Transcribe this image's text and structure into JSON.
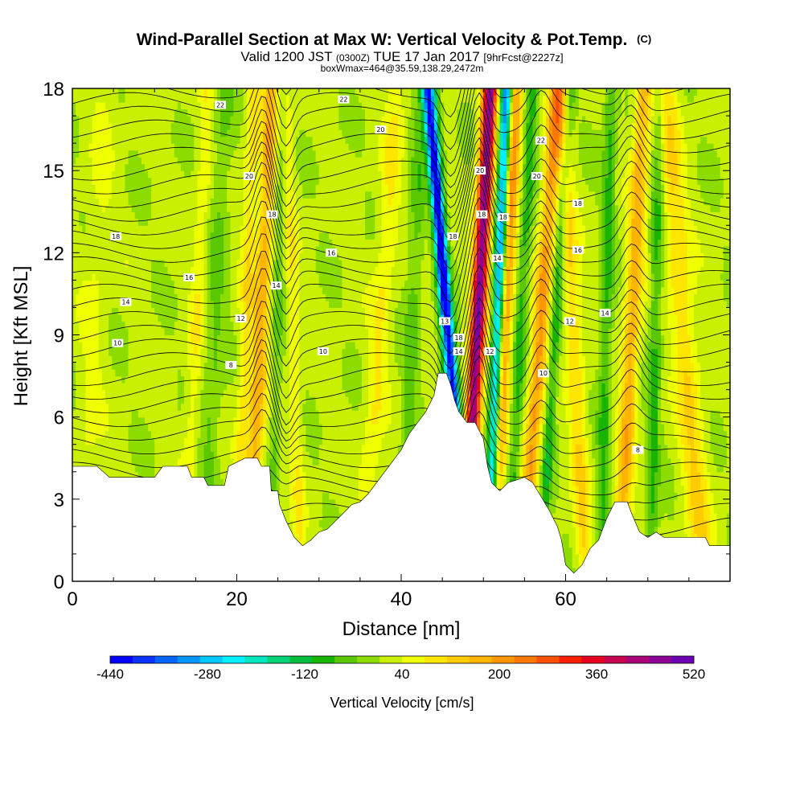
{
  "chart_data": {
    "type": "heatmap",
    "title": {
      "main": "Wind-Parallel Section at Max W: Vertical Velocity & Pot.Temp.",
      "main_tag": "(C)",
      "sub_prefix": "Valid 1200 JST",
      "sub_utc": "(0300Z)",
      "sub_date": "TUE 17 Jan 2017",
      "sub_fcst": "[9hrFcst@2227z]",
      "box": "boxWmax=464@35.59,138.29,2472m"
    },
    "xlabel": "Distance [nm]",
    "ylabel": "Height [Kft MSL]",
    "xlim": [
      0,
      80
    ],
    "ylim": [
      0,
      18
    ],
    "x_ticks": [
      0,
      20,
      40,
      60
    ],
    "y_ticks": [
      0,
      3,
      6,
      9,
      12,
      15,
      18
    ],
    "colorbar": {
      "title": "Vertical Velocity [cm/s]",
      "labels": [
        -440,
        -280,
        -120,
        40,
        200,
        360,
        520
      ],
      "levels": [
        -440,
        -400,
        -360,
        -320,
        -280,
        -240,
        -200,
        -160,
        -120,
        -80,
        -40,
        0,
        40,
        80,
        120,
        160,
        200,
        240,
        280,
        320,
        360,
        400,
        440,
        480,
        520
      ],
      "colors": [
        "#0000ff",
        "#0a32ff",
        "#0064ff",
        "#0096ff",
        "#00c8ff",
        "#00f0ff",
        "#00e6be",
        "#00d278",
        "#00be3c",
        "#19b400",
        "#5ac800",
        "#8cdc00",
        "#c8f000",
        "#f0ff00",
        "#ffe600",
        "#ffcc00",
        "#ffb400",
        "#ff9600",
        "#ff7800",
        "#ff5000",
        "#ff1e00",
        "#e6001e",
        "#c80050",
        "#aa0078",
        "#8c0096",
        "#6e00b4"
      ]
    },
    "terrain": [
      {
        "x": 0,
        "y": 4.2
      },
      {
        "x": 3,
        "y": 4.2
      },
      {
        "x": 4.5,
        "y": 3.8
      },
      {
        "x": 10,
        "y": 3.8
      },
      {
        "x": 11,
        "y": 4.2
      },
      {
        "x": 14,
        "y": 4.2
      },
      {
        "x": 14.5,
        "y": 3.8
      },
      {
        "x": 16,
        "y": 3.8
      },
      {
        "x": 16.5,
        "y": 3.5
      },
      {
        "x": 18.5,
        "y": 3.5
      },
      {
        "x": 19,
        "y": 4.2
      },
      {
        "x": 21,
        "y": 4.5
      },
      {
        "x": 22.5,
        "y": 4.5
      },
      {
        "x": 23,
        "y": 4.2
      },
      {
        "x": 24,
        "y": 4.2
      },
      {
        "x": 24.2,
        "y": 3.3
      },
      {
        "x": 25,
        "y": 3.3
      },
      {
        "x": 25.2,
        "y": 2.8
      },
      {
        "x": 26,
        "y": 2.2
      },
      {
        "x": 26.5,
        "y": 1.9
      },
      {
        "x": 27,
        "y": 1.6
      },
      {
        "x": 28,
        "y": 1.3
      },
      {
        "x": 29,
        "y": 1.5
      },
      {
        "x": 30,
        "y": 1.8
      },
      {
        "x": 31,
        "y": 1.9
      },
      {
        "x": 32,
        "y": 2.2
      },
      {
        "x": 33,
        "y": 2.5
      },
      {
        "x": 34,
        "y": 2.8
      },
      {
        "x": 35,
        "y": 2.9
      },
      {
        "x": 36,
        "y": 3.2
      },
      {
        "x": 37,
        "y": 3.6
      },
      {
        "x": 38,
        "y": 4.0
      },
      {
        "x": 39,
        "y": 4.4
      },
      {
        "x": 40,
        "y": 4.8
      },
      {
        "x": 41,
        "y": 5.4
      },
      {
        "x": 42,
        "y": 5.8
      },
      {
        "x": 43,
        "y": 6.2
      },
      {
        "x": 44,
        "y": 6.8
      },
      {
        "x": 44.5,
        "y": 7.6
      },
      {
        "x": 45.5,
        "y": 7.6
      },
      {
        "x": 46,
        "y": 7.2
      },
      {
        "x": 46.5,
        "y": 6.6
      },
      {
        "x": 47,
        "y": 6.2
      },
      {
        "x": 48,
        "y": 5.8
      },
      {
        "x": 49,
        "y": 5.8
      },
      {
        "x": 50,
        "y": 5.2
      },
      {
        "x": 50.5,
        "y": 4.2
      },
      {
        "x": 51,
        "y": 3.6
      },
      {
        "x": 52,
        "y": 3.3
      },
      {
        "x": 53,
        "y": 3.6
      },
      {
        "x": 55,
        "y": 3.8
      },
      {
        "x": 56,
        "y": 3.6
      },
      {
        "x": 57,
        "y": 3.1
      },
      {
        "x": 58,
        "y": 2.6
      },
      {
        "x": 59,
        "y": 2.0
      },
      {
        "x": 59.5,
        "y": 1.5
      },
      {
        "x": 60,
        "y": 0.6
      },
      {
        "x": 61,
        "y": 0.3
      },
      {
        "x": 62,
        "y": 0.6
      },
      {
        "x": 63,
        "y": 1.2
      },
      {
        "x": 64,
        "y": 1.5
      },
      {
        "x": 65,
        "y": 2.3
      },
      {
        "x": 66,
        "y": 2.9
      },
      {
        "x": 67.5,
        "y": 2.9
      },
      {
        "x": 68,
        "y": 2.5
      },
      {
        "x": 69,
        "y": 1.8
      },
      {
        "x": 70,
        "y": 1.6
      },
      {
        "x": 71,
        "y": 1.8
      },
      {
        "x": 72,
        "y": 1.6
      },
      {
        "x": 77,
        "y": 1.6
      },
      {
        "x": 77.5,
        "y": 1.3
      },
      {
        "x": 80,
        "y": 1.3
      }
    ],
    "updraft_bands": [
      {
        "x_bottom": 22.0,
        "x_top": 24.2,
        "strength": 170,
        "width": 1.0
      },
      {
        "x_bottom": 20.5,
        "x_top": 22.0,
        "strength": 90,
        "width": 0.8
      },
      {
        "x_bottom": 14.0,
        "x_top": 16.5,
        "strength": 60,
        "width": 0.9
      },
      {
        "x_bottom": 27.5,
        "x_top": 26.0,
        "strength": 60,
        "width": 0.8
      },
      {
        "x_bottom": 36.0,
        "x_top": 39.5,
        "strength": 70,
        "width": 1.2
      },
      {
        "x_bottom": 48.2,
        "x_top": 50.8,
        "strength": 500,
        "width": 0.9
      },
      {
        "x_bottom": 51.5,
        "x_top": 54.0,
        "strength": 220,
        "width": 0.9
      },
      {
        "x_bottom": 55.5,
        "x_top": 59.0,
        "strength": 200,
        "width": 1.0
      },
      {
        "x_bottom": 62.0,
        "x_top": 59.5,
        "strength": 110,
        "width": 1.0
      },
      {
        "x_bottom": 67.0,
        "x_top": 69.5,
        "strength": 170,
        "width": 1.0
      },
      {
        "x_bottom": 76.0,
        "x_top": 72.0,
        "strength": 110,
        "width": 1.5
      },
      {
        "x_bottom": 1.5,
        "x_top": 4.0,
        "strength": 35,
        "width": 1.5
      }
    ],
    "downdraft_bands": [
      {
        "x_bottom": 47.5,
        "x_top": 43.2,
        "strength": -430,
        "width": 0.7
      },
      {
        "x_bottom": 51.0,
        "x_top": 52.8,
        "strength": -380,
        "width": 0.7
      },
      {
        "x_bottom": 46.0,
        "x_top": 44.0,
        "strength": -120,
        "width": 0.8
      },
      {
        "x_bottom": 53.5,
        "x_top": 56.0,
        "strength": -110,
        "width": 0.8
      },
      {
        "x_bottom": 57.5,
        "x_top": 60.5,
        "strength": -120,
        "width": 0.7
      },
      {
        "x_bottom": 64.5,
        "x_top": 65.5,
        "strength": -100,
        "width": 0.8
      },
      {
        "x_bottom": 70.5,
        "x_top": 71.5,
        "strength": -100,
        "width": 0.8
      },
      {
        "x_bottom": 16.5,
        "x_top": 18.5,
        "strength": -60,
        "width": 1.2
      },
      {
        "x_bottom": 24.5,
        "x_top": 25.5,
        "strength": -60,
        "width": 0.7
      },
      {
        "x_bottom": 40.5,
        "x_top": 42.5,
        "strength": -70,
        "width": 1.0
      }
    ],
    "contour_labels": [
      {
        "x": 18,
        "y": 17.4,
        "text": "22"
      },
      {
        "x": 33,
        "y": 17.6,
        "text": "22"
      },
      {
        "x": 37.5,
        "y": 16.5,
        "text": "20"
      },
      {
        "x": 57,
        "y": 16.1,
        "text": "22"
      },
      {
        "x": 21.5,
        "y": 14.8,
        "text": "20"
      },
      {
        "x": 49.6,
        "y": 15.0,
        "text": "20"
      },
      {
        "x": 56.5,
        "y": 14.8,
        "text": "20"
      },
      {
        "x": 24.3,
        "y": 13.4,
        "text": "18"
      },
      {
        "x": 49.8,
        "y": 13.4,
        "text": "18"
      },
      {
        "x": 52.4,
        "y": 13.3,
        "text": "18"
      },
      {
        "x": 61.5,
        "y": 13.8,
        "text": "18"
      },
      {
        "x": 5.3,
        "y": 12.6,
        "text": "18"
      },
      {
        "x": 46.3,
        "y": 12.6,
        "text": "18"
      },
      {
        "x": 31.5,
        "y": 12.0,
        "text": "16"
      },
      {
        "x": 61.5,
        "y": 12.1,
        "text": "16"
      },
      {
        "x": 51.7,
        "y": 11.8,
        "text": "14"
      },
      {
        "x": 14.2,
        "y": 11.1,
        "text": "16"
      },
      {
        "x": 24.8,
        "y": 10.8,
        "text": "14"
      },
      {
        "x": 6.5,
        "y": 10.2,
        "text": "14"
      },
      {
        "x": 64.8,
        "y": 9.8,
        "text": "14"
      },
      {
        "x": 20.5,
        "y": 9.6,
        "text": "12"
      },
      {
        "x": 45.3,
        "y": 9.5,
        "text": "13"
      },
      {
        "x": 60.5,
        "y": 9.5,
        "text": "12"
      },
      {
        "x": 47.0,
        "y": 8.9,
        "text": "18"
      },
      {
        "x": 5.5,
        "y": 8.7,
        "text": "10"
      },
      {
        "x": 30.5,
        "y": 8.4,
        "text": "10"
      },
      {
        "x": 47.0,
        "y": 8.4,
        "text": "14"
      },
      {
        "x": 50.8,
        "y": 8.4,
        "text": "12"
      },
      {
        "x": 19.3,
        "y": 7.9,
        "text": "8"
      },
      {
        "x": 57.3,
        "y": 7.6,
        "text": "10"
      },
      {
        "x": 68.8,
        "y": 4.8,
        "text": "8"
      }
    ]
  }
}
